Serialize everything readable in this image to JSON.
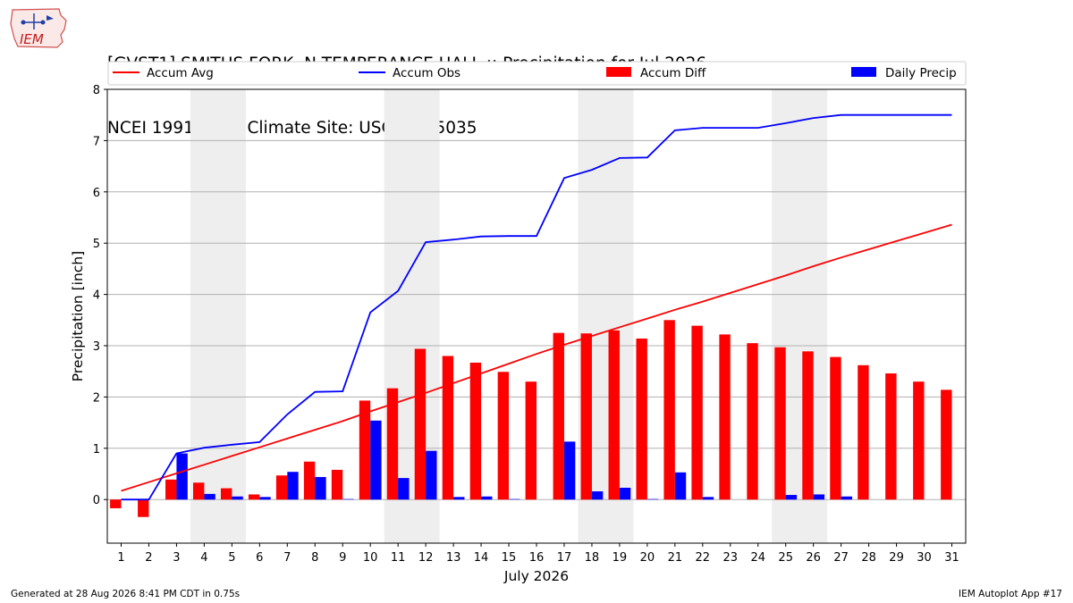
{
  "header": {
    "line1": "[GVST1] SMITHS FORK  N TEMPERANCE HALL :: Precipitation for Jul 2026",
    "line2": "NCEI 1991-2020 Climate Site: USC00405035",
    "logo_text": "IEM"
  },
  "footer": {
    "left": "Generated at 28 Aug 2026 8:41 PM CDT in 0.75s",
    "right": "IEM Autoplot App #17"
  },
  "colors": {
    "avg": "#ff0000",
    "obs": "#0000ff",
    "diff": "#ff0000",
    "daily": "#0000ff",
    "weekend": "#eeeeee",
    "grid": "#b0b0b0"
  },
  "chart_data": {
    "type": "bar",
    "xlabel": "July 2026",
    "ylabel": "Precipitation [inch]",
    "ylim": [
      -0.85,
      8
    ],
    "yticks": [
      0,
      1,
      2,
      3,
      4,
      5,
      6,
      7,
      8
    ],
    "xlim": [
      0.5,
      31.5
    ],
    "legend_position": "top",
    "grid": "horizontal",
    "weekend_shading": [
      [
        4,
        5
      ],
      [
        11,
        12
      ],
      [
        18,
        19
      ],
      [
        25,
        26
      ]
    ],
    "x": [
      1,
      2,
      3,
      4,
      5,
      6,
      7,
      8,
      9,
      10,
      11,
      12,
      13,
      14,
      15,
      16,
      17,
      18,
      19,
      20,
      21,
      22,
      23,
      24,
      25,
      26,
      27,
      28,
      29,
      30,
      31
    ],
    "series": [
      {
        "name": "Accum Avg",
        "kind": "line",
        "values": [
          0.17,
          0.34,
          0.51,
          0.68,
          0.85,
          1.02,
          1.19,
          1.36,
          1.53,
          1.72,
          1.9,
          2.08,
          2.27,
          2.46,
          2.65,
          2.84,
          3.02,
          3.19,
          3.36,
          3.53,
          3.7,
          3.86,
          4.03,
          4.2,
          4.37,
          4.55,
          4.72,
          4.88,
          5.04,
          5.2,
          5.36
        ]
      },
      {
        "name": "Accum Obs",
        "kind": "line",
        "values": [
          0.0,
          0.0,
          0.9,
          1.01,
          1.07,
          1.12,
          1.66,
          2.1,
          2.11,
          3.65,
          4.07,
          5.02,
          5.07,
          5.13,
          5.14,
          5.14,
          6.27,
          6.43,
          6.66,
          6.67,
          7.2,
          7.25,
          7.25,
          7.25,
          7.34,
          7.44,
          7.5,
          7.5,
          7.5,
          7.5,
          7.5
        ]
      },
      {
        "name": "Accum Diff",
        "kind": "bar",
        "values": [
          -0.17,
          -0.34,
          0.39,
          0.33,
          0.22,
          0.1,
          0.47,
          0.74,
          0.58,
          1.93,
          2.17,
          2.94,
          2.8,
          2.67,
          2.49,
          2.3,
          3.25,
          3.24,
          3.3,
          3.14,
          3.5,
          3.39,
          3.22,
          3.05,
          2.97,
          2.89,
          2.78,
          2.62,
          2.46,
          2.3,
          2.14
        ]
      },
      {
        "name": "Daily Precip",
        "kind": "bar",
        "values": [
          0.0,
          0.0,
          0.9,
          0.11,
          0.06,
          0.05,
          0.54,
          0.44,
          0.01,
          1.54,
          0.42,
          0.95,
          0.05,
          0.06,
          0.01,
          0.0,
          1.13,
          0.16,
          0.23,
          0.01,
          0.53,
          0.05,
          0.0,
          0.0,
          0.09,
          0.1,
          0.06,
          0.0,
          0.0,
          0.0,
          0.0
        ]
      }
    ]
  }
}
